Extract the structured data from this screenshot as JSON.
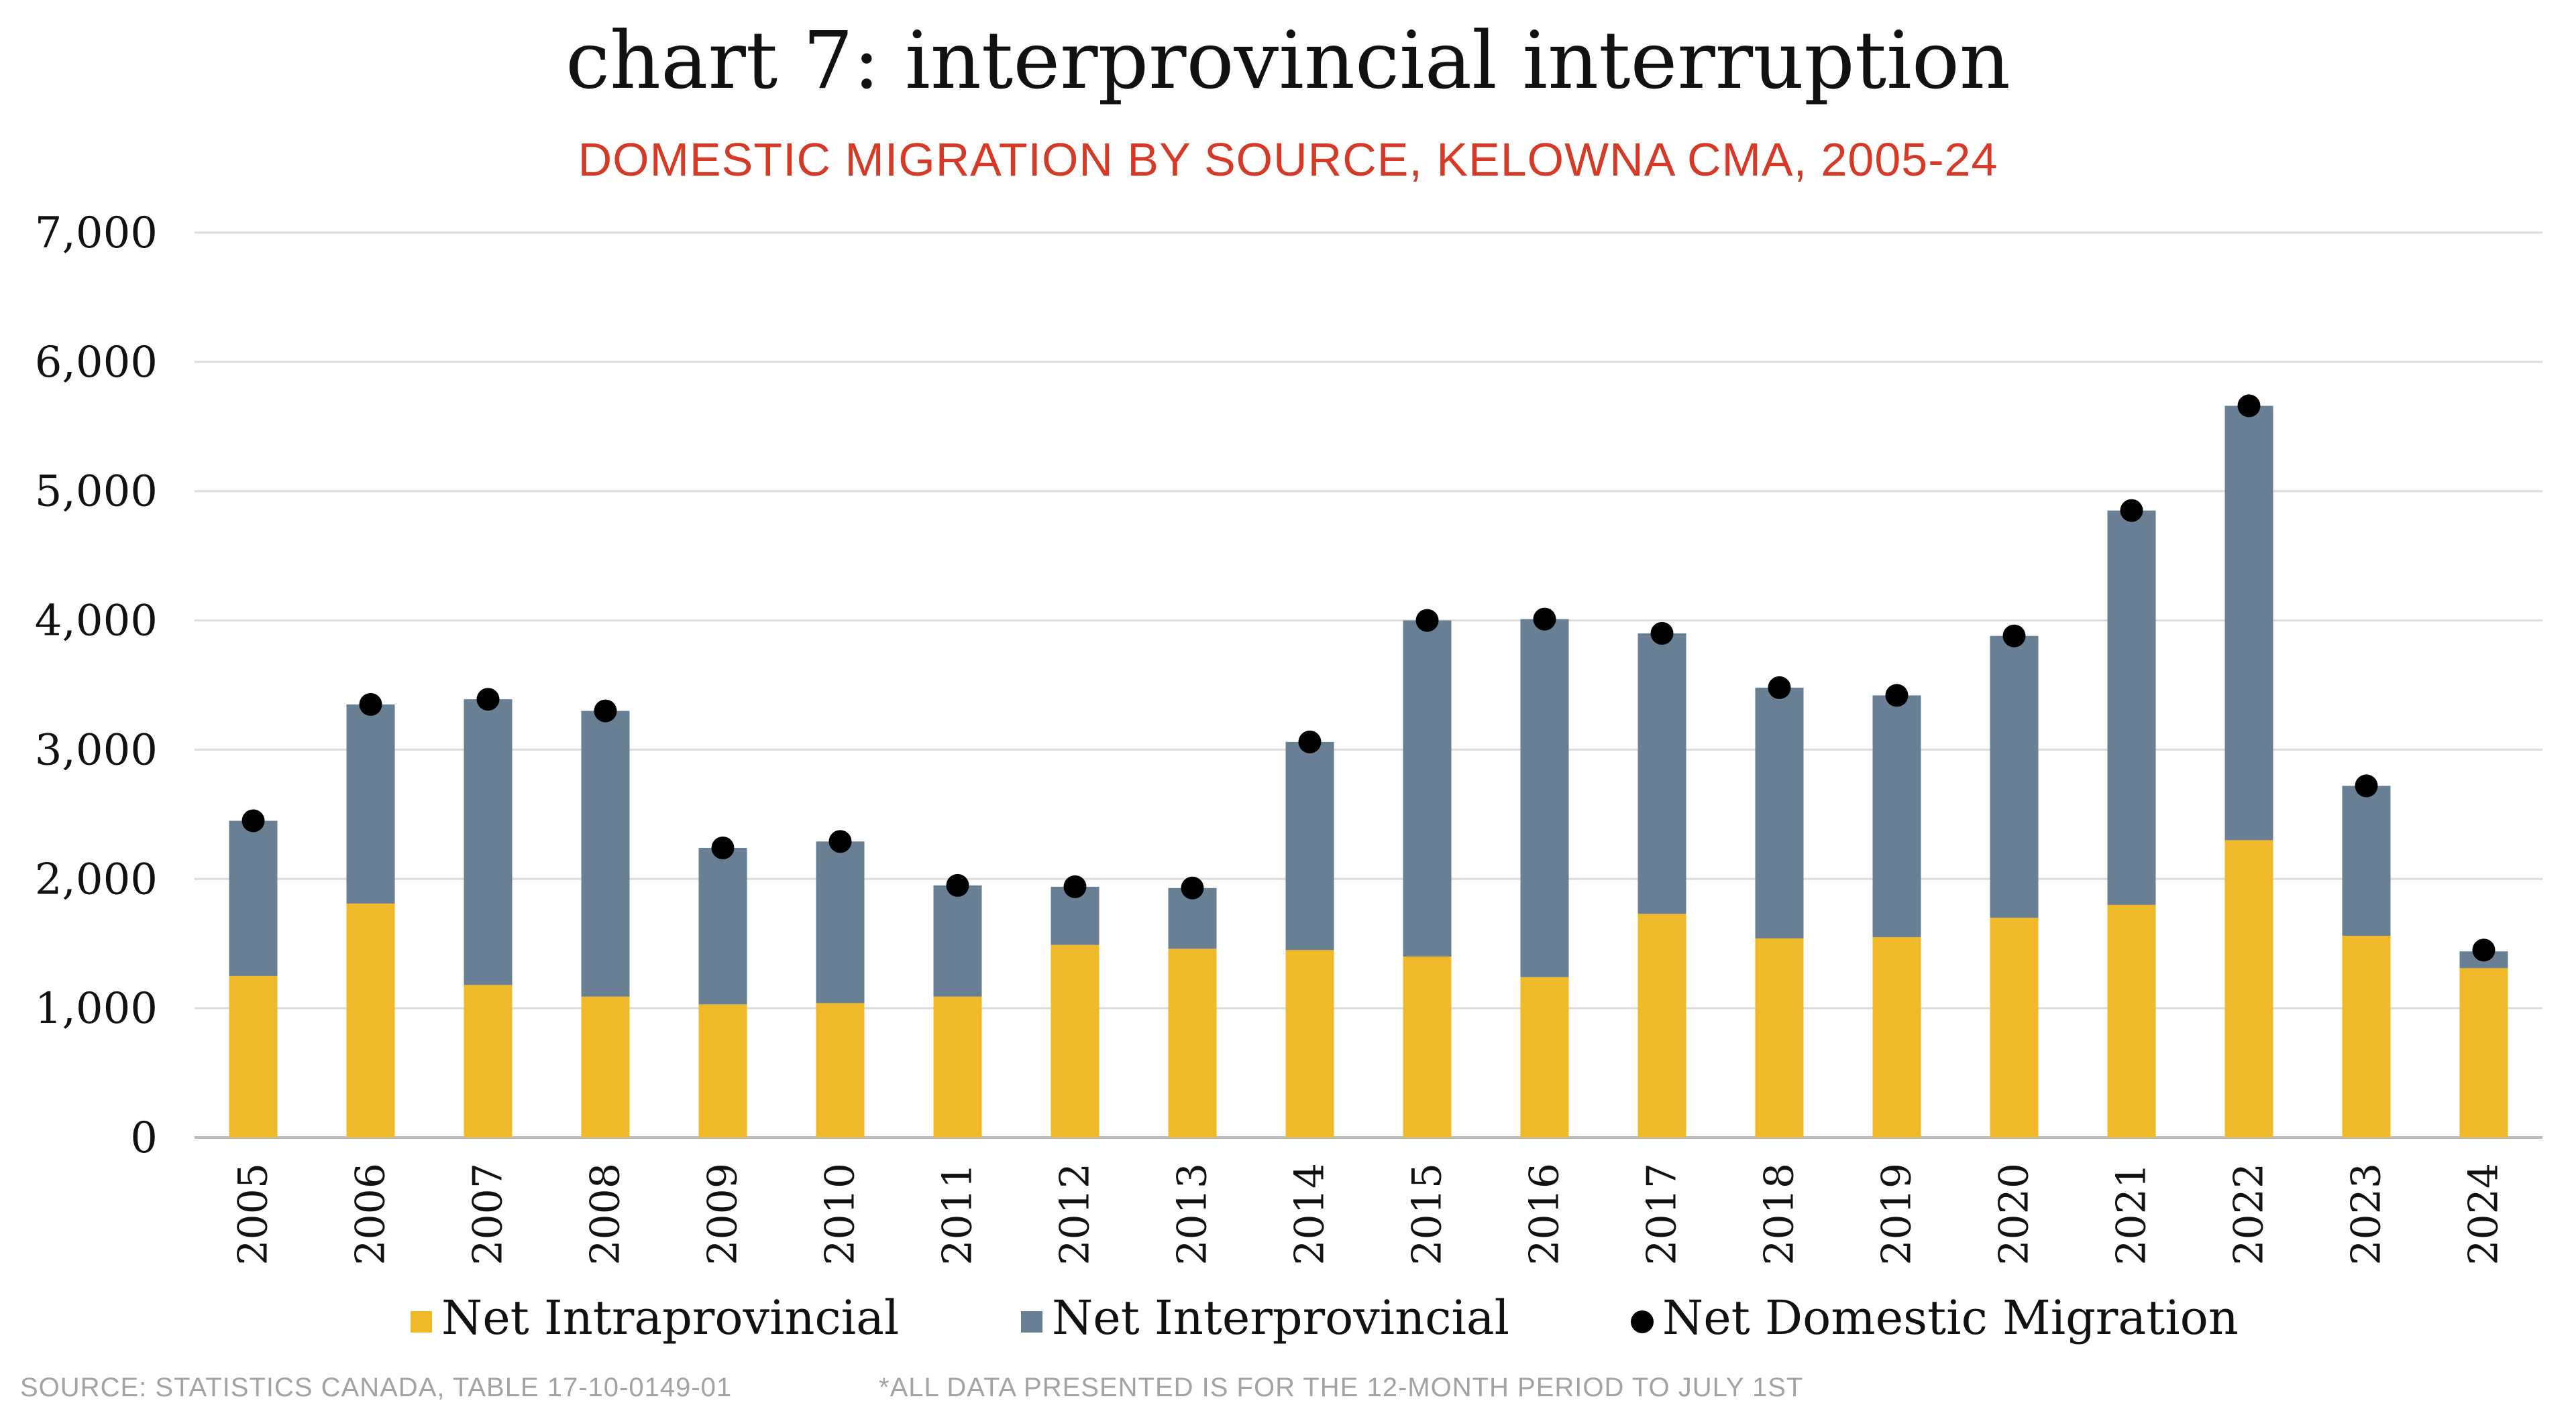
{
  "title": "chart 7: interprovincial interruption",
  "subtitle": "DOMESTIC MIGRATION BY SOURCE, KELOWNA CMA, 2005-24",
  "footer": {
    "source": "SOURCE: STATISTICS CANADA, TABLE 17-10-0149-01",
    "note": "*ALL DATA PRESENTED IS FOR THE 12-MONTH PERIOD TO JULY 1ST"
  },
  "colors": {
    "intraprovincial": "#f0b92a",
    "interprovincial": "#687f94",
    "domestic": "#000000",
    "grid": "#dcdcdc",
    "axis": "#bdbdbd"
  },
  "chart_data": {
    "type": "bar",
    "stacked": true,
    "title": "chart 7: interprovincial interruption",
    "subtitle": "DOMESTIC MIGRATION BY SOURCE, KELOWNA CMA, 2005-24",
    "xlabel": "",
    "ylabel": "",
    "ylim": [
      0,
      7000
    ],
    "yticks": [
      0,
      1000,
      2000,
      3000,
      4000,
      5000,
      6000,
      7000
    ],
    "ytick_labels": [
      "0",
      "1,000",
      "2,000",
      "3,000",
      "4,000",
      "5,000",
      "6,000",
      "7,000"
    ],
    "grid": true,
    "legend_position": "bottom",
    "categories": [
      "2005",
      "2006",
      "2007",
      "2008",
      "2009",
      "2010",
      "2011",
      "2012",
      "2013",
      "2014",
      "2015",
      "2016",
      "2017",
      "2018",
      "2019",
      "2020",
      "2021",
      "2022",
      "2023",
      "2024"
    ],
    "series": [
      {
        "name": "Net Intraprovincial",
        "type": "bar",
        "color": "#f0b92a",
        "values": [
          1250,
          1810,
          1180,
          1090,
          1030,
          1040,
          1090,
          1490,
          1460,
          1450,
          1400,
          1240,
          1730,
          1540,
          1550,
          1700,
          1800,
          2300,
          1560,
          1310
        ]
      },
      {
        "name": "Net Interprovincial",
        "type": "bar",
        "color": "#687f94",
        "values": [
          1200,
          1540,
          2210,
          2210,
          1210,
          1250,
          860,
          450,
          470,
          1610,
          2600,
          2770,
          2170,
          1940,
          1870,
          2180,
          3050,
          3360,
          1160,
          130
        ]
      },
      {
        "name": "Net Domestic Migration",
        "type": "scatter",
        "color": "#000000",
        "values": [
          2450,
          3350,
          3390,
          3300,
          2240,
          2290,
          1950,
          1940,
          1930,
          3060,
          4000,
          4010,
          3900,
          3480,
          3420,
          3880,
          4850,
          5660,
          2720,
          1450
        ]
      }
    ]
  }
}
